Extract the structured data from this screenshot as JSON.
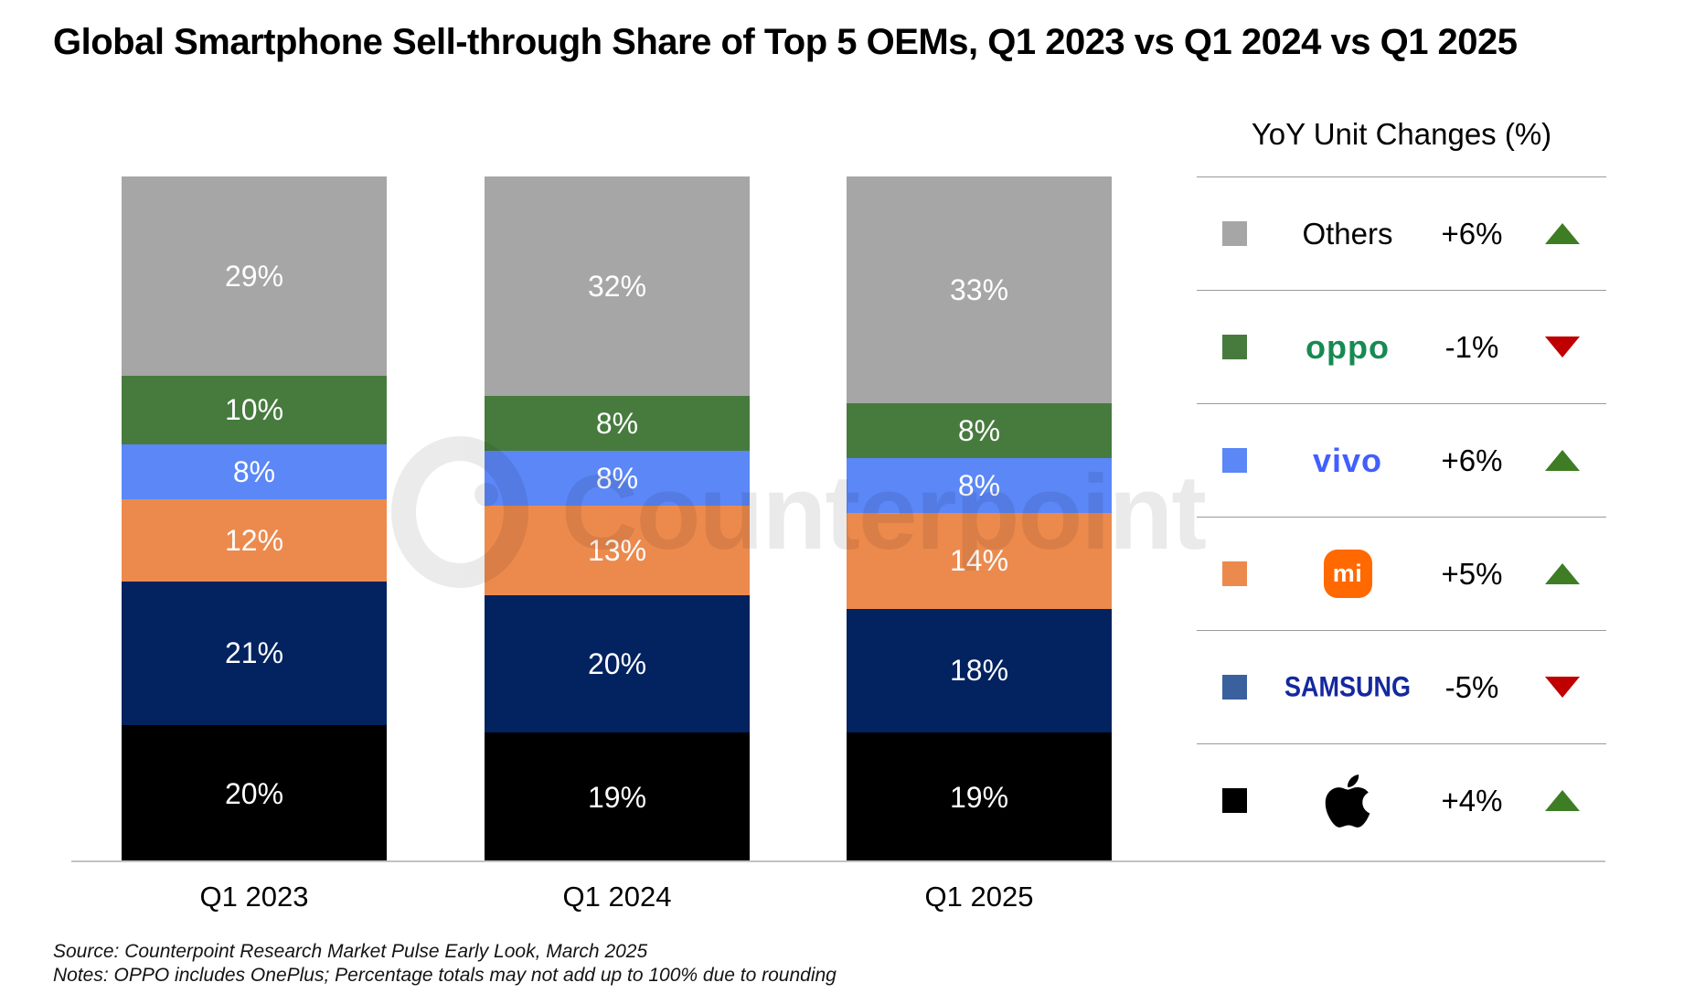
{
  "title": "Global Smartphone Sell-through Share of Top 5 OEMs, Q1 2023 vs Q1 2024 vs Q1 2025",
  "watermark_text": "Counterpoint",
  "chart_data": {
    "type": "bar",
    "stacked": true,
    "orientation": "vertical",
    "categories": [
      "Q1 2023",
      "Q1 2024",
      "Q1 2025"
    ],
    "series": [
      {
        "name": "Apple",
        "color": "#000000",
        "values": [
          20,
          19,
          19
        ]
      },
      {
        "name": "Samsung",
        "color": "#022260",
        "values": [
          21,
          20,
          18
        ]
      },
      {
        "name": "Xiaomi",
        "color": "#ec8a4d",
        "values": [
          12,
          13,
          14
        ]
      },
      {
        "name": "vivo",
        "color": "#5b87f7",
        "values": [
          8,
          8,
          8
        ]
      },
      {
        "name": "OPPO",
        "color": "#477b3e",
        "values": [
          10,
          8,
          8
        ]
      },
      {
        "name": "Others",
        "color": "#a6a6a6",
        "values": [
          29,
          32,
          33
        ]
      }
    ],
    "value_suffix": "%",
    "ylim": [
      0,
      100
    ],
    "grid": false,
    "legend_position": "right",
    "label_color": "#ffffff"
  },
  "legend_panel": {
    "title": "YoY Unit Changes (%)",
    "up_color": "#3e7d23",
    "down_color": "#c00000",
    "rows": [
      {
        "id": "others",
        "label": "Others",
        "style": "plain",
        "swatch": "#a6a6a6",
        "change": "+6%",
        "direction": "up"
      },
      {
        "id": "oppo",
        "label": "oppo",
        "style": "oppo",
        "swatch": "#477b3e",
        "change": "-1%",
        "direction": "down"
      },
      {
        "id": "vivo",
        "label": "vivo",
        "style": "vivo",
        "swatch": "#5b87f7",
        "change": "+6%",
        "direction": "up"
      },
      {
        "id": "xiaomi",
        "label": "mi",
        "style": "xiaomi",
        "swatch": "#ec8a4d",
        "change": "+5%",
        "direction": "up"
      },
      {
        "id": "samsung",
        "label": "SAMSUNG",
        "style": "samsung",
        "swatch": "#3a619e",
        "change": "-5%",
        "direction": "down"
      },
      {
        "id": "apple",
        "label": "",
        "style": "apple",
        "swatch": "#000000",
        "change": "+4%",
        "direction": "up"
      }
    ]
  },
  "footer": {
    "source": "Source: Counterpoint Research Market Pulse Early Look, March 2025",
    "notes": "Notes: OPPO includes OnePlus; Percentage totals may not add up to 100% due to rounding"
  }
}
